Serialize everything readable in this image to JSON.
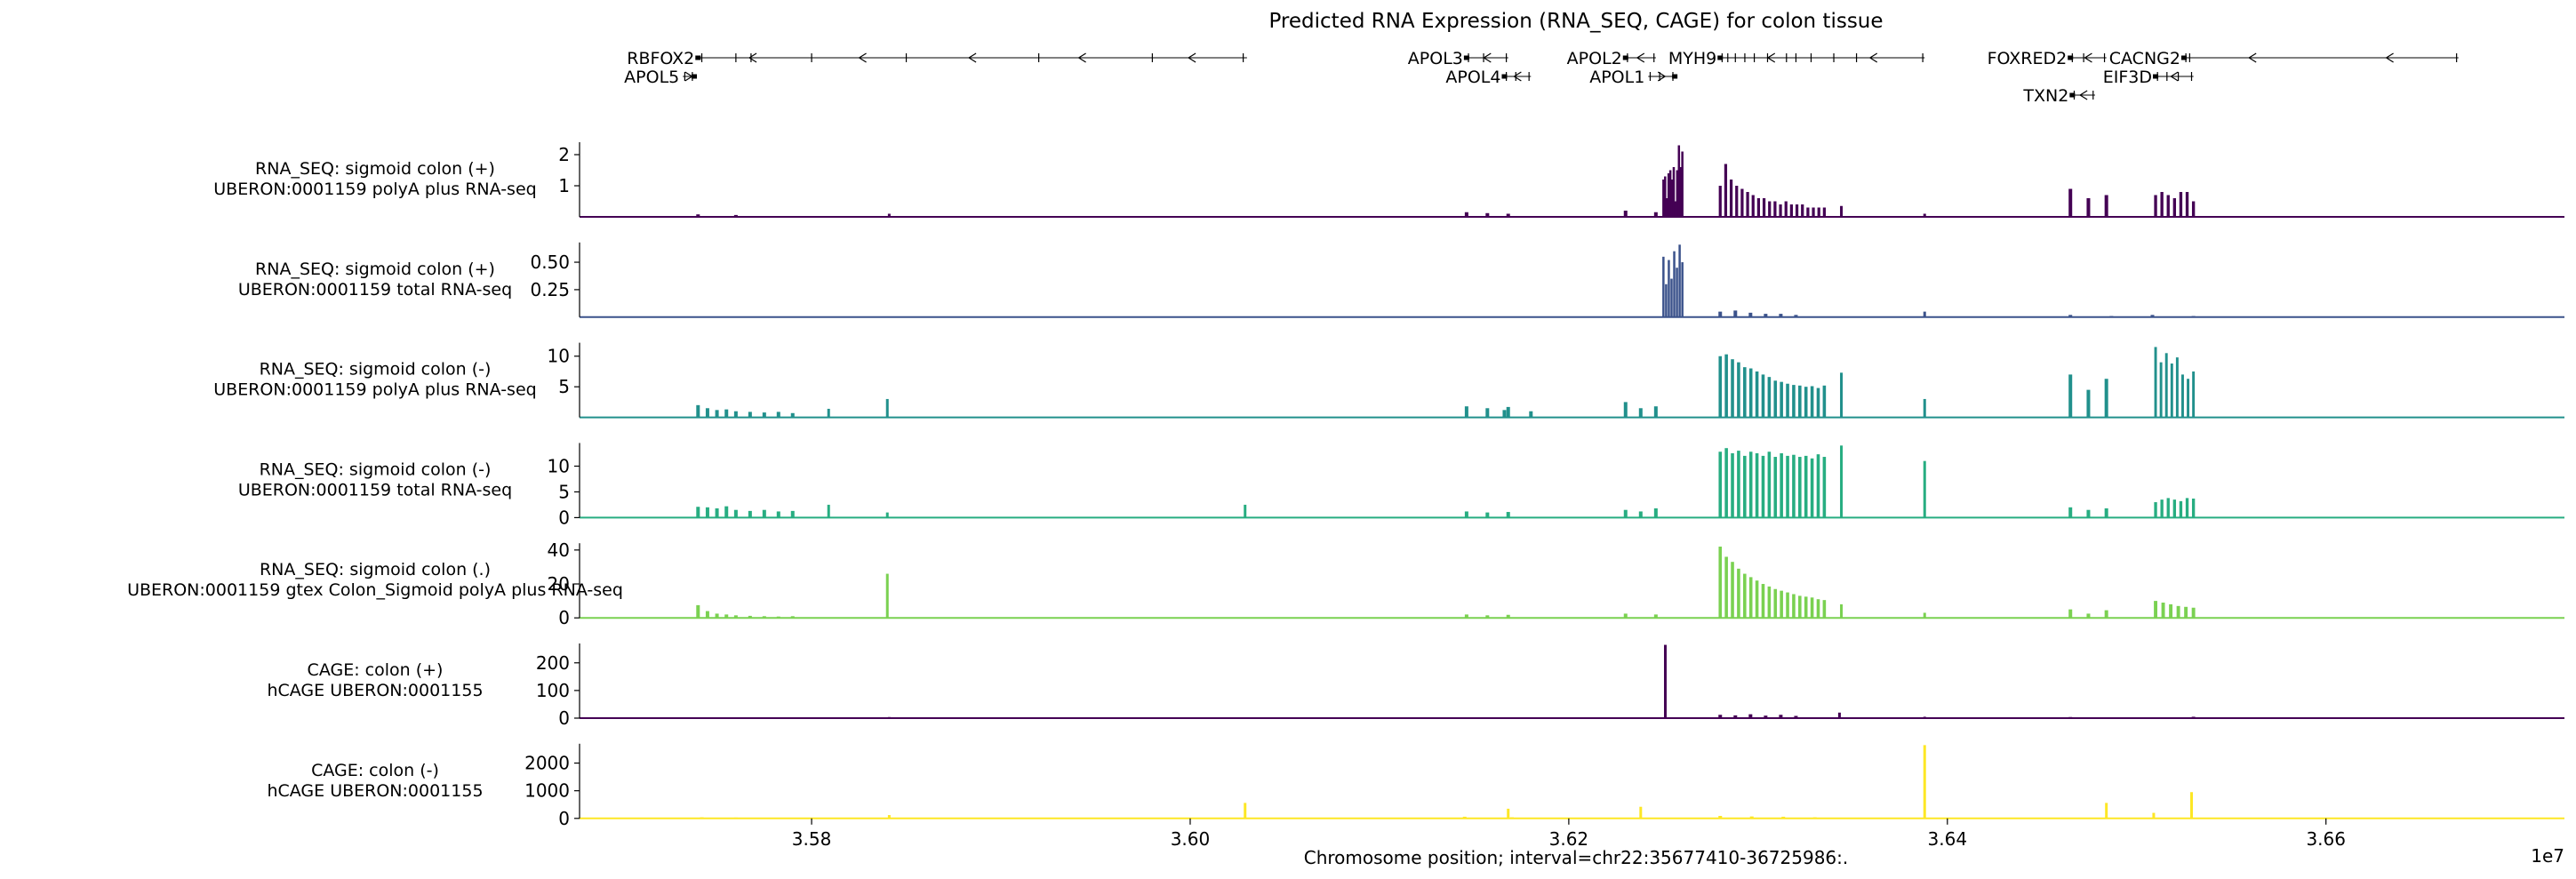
{
  "title": "Predicted RNA Expression (RNA_SEQ, CAGE) for colon tissue",
  "chart_data": {
    "type": "area",
    "title": "Predicted RNA Expression (RNA_SEQ, CAGE) for colon tissue",
    "xlabel": "Chromosome position; interval=chr22:35677410-36725986:.",
    "x_offset_label": "1e7",
    "xlim": [
      3.567741,
      3.6725986
    ],
    "xticks": [
      3.58,
      3.6,
      3.62,
      3.64,
      3.66
    ],
    "xtick_labels": [
      "3.58",
      "3.60",
      "3.62",
      "3.64",
      "3.66"
    ],
    "genes": [
      {
        "name": "RBFOX2",
        "start": 3.574,
        "end": 3.603,
        "strand": "-",
        "row": 0,
        "exons": [
          3.5742,
          3.576,
          3.5768,
          3.58,
          3.585,
          3.592,
          3.598,
          3.6028
        ]
      },
      {
        "name": "APOL5",
        "start": 3.5732,
        "end": 3.5738,
        "strand": "+",
        "row": 1,
        "exons": [
          3.5733,
          3.5737
        ]
      },
      {
        "name": "APOL3",
        "start": 3.6146,
        "end": 3.6168,
        "strand": "-",
        "row": 0,
        "exons": [
          3.6147,
          3.6155,
          3.6167
        ]
      },
      {
        "name": "APOL4",
        "start": 3.6166,
        "end": 3.618,
        "strand": "-",
        "row": 1,
        "exons": [
          3.6167,
          3.6172,
          3.6179
        ]
      },
      {
        "name": "APOL2",
        "start": 3.623,
        "end": 3.6246,
        "strand": "-",
        "row": 0,
        "exons": [
          3.6231,
          3.6245
        ]
      },
      {
        "name": "APOL1",
        "start": 3.6242,
        "end": 3.6256,
        "strand": "+",
        "row": 1,
        "exons": [
          3.6243,
          3.6248,
          3.6255
        ]
      },
      {
        "name": "MYH9",
        "start": 3.628,
        "end": 3.6388,
        "strand": "-",
        "row": 0,
        "exons": [
          3.6281,
          3.6284,
          3.6288,
          3.6293,
          3.6298,
          3.6305,
          3.6315,
          3.632,
          3.6328,
          3.634,
          3.6352,
          3.6387
        ]
      },
      {
        "name": "FOXRED2",
        "start": 3.6465,
        "end": 3.6484,
        "strand": "-",
        "row": 0,
        "exons": [
          3.6466,
          3.6472,
          3.6483
        ]
      },
      {
        "name": "TXN2",
        "start": 3.6466,
        "end": 3.6478,
        "strand": "-",
        "row": 2,
        "exons": [
          3.6467,
          3.6477
        ]
      },
      {
        "name": "EIF3D",
        "start": 3.651,
        "end": 3.653,
        "strand": "-",
        "row": 1,
        "exons": [
          3.6511,
          3.6516,
          3.6522,
          3.6529
        ]
      },
      {
        "name": "CACNG2",
        "start": 3.6525,
        "end": 3.667,
        "strand": "-",
        "row": 0,
        "exons": [
          3.6526,
          3.6528,
          3.6669
        ]
      }
    ],
    "tracks": [
      {
        "label_line1": "RNA_SEQ: sigmoid colon (+)",
        "label_line2": "UBERON:0001159 polyA plus RNA-seq",
        "color": "#440154",
        "ylim": [
          0,
          2.4
        ],
        "yticks": [
          1,
          2
        ],
        "ytick_labels": [
          "1",
          "2"
        ],
        "baseline": 0.03,
        "peaks": [
          {
            "region": [
              3.625,
              3.626
            ],
            "values": [
              1.2,
              1.3,
              0.6,
              1.4,
              1.5,
              1.2,
              1.6,
              0.5,
              1.5,
              2.3,
              1.6,
              2.1
            ]
          },
          {
            "region": [
              3.628,
              3.6335
            ],
            "values": [
              1.0,
              1.7,
              1.2,
              1.0,
              0.9,
              0.8,
              0.7,
              0.6,
              0.6,
              0.5,
              0.5,
              0.4,
              0.5,
              0.4,
              0.4,
              0.4,
              0.3,
              0.3,
              0.3,
              0.3
            ]
          },
          {
            "region": [
              3.6342,
              3.6346
            ],
            "values": [
              0.35
            ]
          },
          {
            "region": [
              3.6465,
              3.6484
            ],
            "values": [
              0.9,
              0.6,
              0.7
            ]
          },
          {
            "region": [
              3.651,
              3.653
            ],
            "values": [
              0.7,
              0.8,
              0.7,
              0.6,
              0.8,
              0.8,
              0.5
            ]
          },
          {
            "region": [
              3.6146,
              3.6168
            ],
            "values": [
              0.15,
              0.12,
              0.1
            ]
          },
          {
            "region": [
              3.623,
              3.6246
            ],
            "values": [
              0.2,
              0.15
            ]
          },
          {
            "region": [
              3.574,
              3.576
            ],
            "values": [
              0.08,
              0.06
            ]
          },
          {
            "region": [
              3.584,
              3.5842
            ],
            "values": [
              0.1
            ]
          },
          {
            "region": [
              3.6387,
              3.6389
            ],
            "values": [
              0.1
            ]
          }
        ]
      },
      {
        "label_line1": "RNA_SEQ: sigmoid colon (+)",
        "label_line2": "UBERON:0001159 total RNA-seq",
        "color": "#3b528b",
        "ylim": [
          0,
          0.68
        ],
        "yticks": [
          0.25,
          0.5
        ],
        "ytick_labels": [
          "0.25",
          "0.50"
        ],
        "baseline": 0.004,
        "peaks": [
          {
            "region": [
              3.625,
              3.626
            ],
            "values": [
              0.55,
              0.3,
              0.52,
              0.35,
              0.6,
              0.45,
              0.66,
              0.5
            ]
          },
          {
            "region": [
              3.628,
              3.632
            ],
            "values": [
              0.05,
              0.06,
              0.04,
              0.03,
              0.03,
              0.02
            ]
          },
          {
            "region": [
              3.6387,
              3.6389
            ],
            "values": [
              0.05
            ]
          },
          {
            "region": [
              3.6465,
              3.653
            ],
            "values": [
              0.02,
              0.01,
              0.02,
              0.01
            ]
          }
        ]
      },
      {
        "label_line1": "RNA_SEQ: sigmoid colon (-)",
        "label_line2": "UBERON:0001159 polyA plus RNA-seq",
        "color": "#21908c",
        "ylim": [
          0,
          12.2
        ],
        "yticks": [
          5,
          10
        ],
        "ytick_labels": [
          "5",
          "10"
        ],
        "baseline": 0.1,
        "peaks": [
          {
            "region": [
              3.574,
              3.5755
            ],
            "values": [
              2.0,
              1.5,
              1.2,
              1.3
            ]
          },
          {
            "region": [
              3.576,
              3.579
            ],
            "values": [
              1.0,
              0.9,
              0.8,
              0.9,
              0.7
            ]
          },
          {
            "region": [
              3.5808,
              3.581
            ],
            "values": [
              1.4
            ]
          },
          {
            "region": [
              3.5839,
              3.5841
            ],
            "values": [
              3.0
            ]
          },
          {
            "region": [
              3.6146,
              3.6168
            ],
            "values": [
              1.8,
              1.5,
              1.7
            ]
          },
          {
            "region": [
              3.6166,
              3.618
            ],
            "values": [
              1.2,
              1.0
            ]
          },
          {
            "region": [
              3.623,
              3.6246
            ],
            "values": [
              2.5,
              1.5,
              1.8
            ]
          },
          {
            "region": [
              3.628,
              3.6335
            ],
            "values": [
              10.0,
              10.3,
              9.5,
              9.0,
              8.2,
              8.0,
              7.5,
              7.0,
              6.6,
              6.0,
              5.8,
              5.5,
              5.3,
              5.2,
              5.0,
              5.1,
              4.8,
              5.2
            ]
          },
          {
            "region": [
              3.6342,
              3.6346
            ],
            "values": [
              7.3
            ]
          },
          {
            "region": [
              3.6387,
              3.6389
            ],
            "values": [
              3.0
            ]
          },
          {
            "region": [
              3.6465,
              3.6484
            ],
            "values": [
              7.0,
              4.5,
              6.3
            ]
          },
          {
            "region": [
              3.651,
              3.653
            ],
            "values": [
              11.5,
              9.0,
              10.5,
              8.8,
              9.8,
              7.0,
              6.3,
              7.5
            ]
          }
        ]
      },
      {
        "label_line1": "RNA_SEQ: sigmoid colon (-)",
        "label_line2": "UBERON:0001159 total RNA-seq",
        "color": "#27ad81",
        "ylim": [
          0,
          14.5
        ],
        "yticks": [
          0,
          5,
          10
        ],
        "ytick_labels": [
          "0",
          "5",
          "10"
        ],
        "baseline": 0.15,
        "peaks": [
          {
            "region": [
              3.574,
              3.5755
            ],
            "values": [
              2.1,
              2.0,
              1.8,
              2.2
            ]
          },
          {
            "region": [
              3.576,
              3.579
            ],
            "values": [
              1.5,
              1.3,
              1.5,
              1.2,
              1.3
            ]
          },
          {
            "region": [
              3.5808,
              3.581
            ],
            "values": [
              2.5
            ]
          },
          {
            "region": [
              3.5839,
              3.5841
            ],
            "values": [
              1.0
            ]
          },
          {
            "region": [
              3.6028,
              3.603
            ],
            "values": [
              2.5
            ]
          },
          {
            "region": [
              3.6146,
              3.6168
            ],
            "values": [
              1.2,
              1.0,
              1.1
            ]
          },
          {
            "region": [
              3.623,
              3.6246
            ],
            "values": [
              1.5,
              1.2,
              1.8
            ]
          },
          {
            "region": [
              3.628,
              3.6335
            ],
            "values": [
              12.8,
              13.5,
              12.5,
              13.0,
              12.0,
              12.8,
              12.5,
              12.0,
              12.8,
              11.8,
              12.5,
              12.0,
              12.2,
              11.8,
              12.0,
              11.5,
              12.3,
              11.8
            ]
          },
          {
            "region": [
              3.6342,
              3.6346
            ],
            "values": [
              14.0
            ]
          },
          {
            "region": [
              3.6387,
              3.6389
            ],
            "values": [
              11.0
            ]
          },
          {
            "region": [
              3.6465,
              3.6484
            ],
            "values": [
              2.0,
              1.5,
              1.8
            ]
          },
          {
            "region": [
              3.651,
              3.653
            ],
            "values": [
              3.0,
              3.5,
              3.8,
              3.5,
              3.2,
              3.8,
              3.7
            ]
          }
        ]
      },
      {
        "label_line1": "RNA_SEQ: sigmoid colon (.)",
        "label_line2": "UBERON:0001159 gtex Colon_Sigmoid polyA plus RNA-seq",
        "color": "#7ad151",
        "ylim": [
          0,
          44
        ],
        "yticks": [
          0,
          20,
          40
        ],
        "ytick_labels": [
          "0",
          "20",
          "40"
        ],
        "baseline": 0.4,
        "peaks": [
          {
            "region": [
              3.574,
              3.5755
            ],
            "values": [
              7.5,
              4.0,
              2.5,
              2.0
            ]
          },
          {
            "region": [
              3.576,
              3.579
            ],
            "values": [
              1.5,
              1.2,
              1.0,
              0.8,
              1.0
            ]
          },
          {
            "region": [
              3.5839,
              3.5841
            ],
            "values": [
              26.0
            ]
          },
          {
            "region": [
              3.6146,
              3.6168
            ],
            "values": [
              2.0,
              1.5,
              1.8
            ]
          },
          {
            "region": [
              3.623,
              3.6246
            ],
            "values": [
              2.5,
              2.0
            ]
          },
          {
            "region": [
              3.628,
              3.6335
            ],
            "values": [
              42.0,
              36.0,
              33.0,
              29.0,
              26.0,
              24.0,
              22.0,
              20.0,
              18.5,
              17.0,
              16.0,
              15.0,
              14.0,
              13.0,
              12.5,
              12.0,
              11.0,
              10.5
            ]
          },
          {
            "region": [
              3.6342,
              3.6346
            ],
            "values": [
              8.0
            ]
          },
          {
            "region": [
              3.6387,
              3.6389
            ],
            "values": [
              3.0
            ]
          },
          {
            "region": [
              3.6465,
              3.6484
            ],
            "values": [
              5.0,
              2.5,
              4.5
            ]
          },
          {
            "region": [
              3.651,
              3.653
            ],
            "values": [
              10.0,
              9.0,
              8.0,
              7.0,
              6.5,
              6.0
            ]
          }
        ]
      },
      {
        "label_line1": "CAGE: colon (+)",
        "label_line2": "hCAGE UBERON:0001155",
        "color": "#440154",
        "ylim": [
          0,
          270
        ],
        "yticks": [
          0,
          100,
          200
        ],
        "ytick_labels": [
          "0",
          "100",
          "200"
        ],
        "baseline": 0.5,
        "peaks": [
          {
            "region": [
              3.625,
              3.6252
            ],
            "values": [
              265
            ]
          },
          {
            "region": [
              3.628,
              3.632
            ],
            "values": [
              12.0,
              10.0,
              14.0,
              9.0,
              12.0,
              8.0
            ]
          },
          {
            "region": [
              3.6342,
              3.6344
            ],
            "values": [
              20.0
            ]
          },
          {
            "region": [
              3.584,
              3.5842
            ],
            "values": [
              4.0
            ]
          },
          {
            "region": [
              3.6387,
              3.6389
            ],
            "values": [
              5.0
            ]
          },
          {
            "region": [
              3.6465,
              3.653
            ],
            "values": [
              4.0,
              3.0,
              5.0
            ]
          }
        ]
      },
      {
        "label_line1": "CAGE: colon (-)",
        "label_line2": "hCAGE UBERON:0001155",
        "color": "#fde725",
        "ylim": [
          0,
          2700
        ],
        "yticks": [
          0,
          1000,
          2000
        ],
        "ytick_labels": [
          "0",
          "1000",
          "2000"
        ],
        "baseline": 5,
        "peaks": [
          {
            "region": [
              3.6387,
              3.6389
            ],
            "values": [
              2650
            ]
          },
          {
            "region": [
              3.6528,
              3.653
            ],
            "values": [
              950
            ]
          },
          {
            "region": [
              3.6028,
              3.603
            ],
            "values": [
              560
            ]
          },
          {
            "region": [
              3.6483,
              3.6485
            ],
            "values": [
              560
            ]
          },
          {
            "region": [
              3.6167,
              3.6169
            ],
            "values": [
              350
            ]
          },
          {
            "region": [
              3.6237,
              3.6239
            ],
            "values": [
              420
            ]
          },
          {
            "region": [
              3.6508,
              3.651
            ],
            "values": [
              200
            ]
          },
          {
            "region": [
              3.584,
              3.5842
            ],
            "values": [
              120
            ]
          },
          {
            "region": [
              3.628,
              3.633
            ],
            "values": [
              90,
              70,
              60,
              40
            ]
          },
          {
            "region": [
              3.5742,
              3.576
            ],
            "values": [
              40,
              30
            ]
          },
          {
            "region": [
              3.6145,
              3.617
            ],
            "values": [
              60,
              40
            ]
          }
        ]
      }
    ]
  }
}
